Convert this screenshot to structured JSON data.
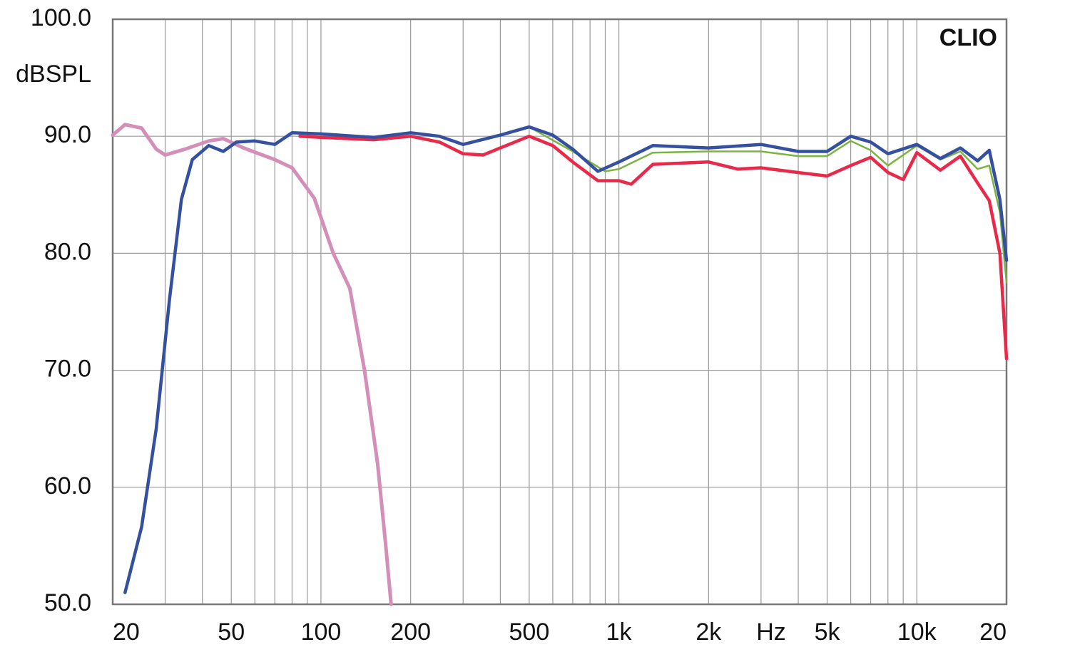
{
  "chart_data": {
    "type": "line",
    "xlog": true,
    "grid": true,
    "ylabel": "dBSPL",
    "xlabel": "Hz",
    "annotation": "CLIO",
    "xlim": [
      20,
      20000
    ],
    "ylim": [
      50,
      100
    ],
    "xticks": [
      {
        "value": 20,
        "label": "20"
      },
      50,
      100,
      200,
      500,
      {
        "value": 1000,
        "label": "1k"
      },
      {
        "value": 2000,
        "label": "2k"
      },
      {
        "value": 5000,
        "label": "5k"
      },
      {
        "value": 10000,
        "label": "10k"
      },
      {
        "value": 20000,
        "label": "20"
      }
    ],
    "xminor": [
      30,
      40,
      60,
      70,
      80,
      90,
      300,
      400,
      600,
      700,
      800,
      900,
      3000,
      4000,
      6000,
      7000,
      8000,
      9000
    ],
    "yticks": [
      {
        "value": 100,
        "label": "100.0"
      },
      {
        "value": 90,
        "label": "90.0"
      },
      {
        "value": 80,
        "label": "80.0"
      },
      {
        "value": 70,
        "label": "70.0"
      },
      {
        "value": 60,
        "label": "60.0"
      },
      {
        "value": 50,
        "label": "50.0"
      }
    ],
    "series": [
      {
        "color": "#d48fb8",
        "width": 5,
        "x": [
          20,
          22,
          25,
          28,
          30,
          35,
          42,
          47,
          55,
          70,
          80,
          95,
          110,
          125,
          140,
          155,
          165,
          172
        ],
        "values": [
          90.1,
          91,
          90.7,
          88.9,
          88.4,
          88.9,
          89.6,
          89.8,
          89,
          88,
          87.3,
          84.7,
          80,
          77,
          70,
          62,
          55,
          50
        ]
      },
      {
        "color": "#7cb342",
        "width": 2.5,
        "x": [
          500,
          700,
          900,
          1000,
          1300,
          2000,
          3000,
          4000,
          5000,
          6000,
          7000,
          8000,
          10000,
          12000,
          14000,
          16000,
          17500,
          19000,
          20000
        ],
        "values": [
          90.8,
          88.7,
          87,
          87.2,
          88.6,
          88.7,
          88.7,
          88.3,
          88.3,
          89.6,
          88.8,
          87.5,
          89.2,
          88,
          88.7,
          87.2,
          87.5,
          83.5,
          77.5
        ]
      },
      {
        "color": "#e8294a",
        "width": 4.5,
        "x": [
          85,
          100,
          150,
          200,
          250,
          300,
          350,
          400,
          500,
          600,
          700,
          850,
          1000,
          1100,
          1300,
          2000,
          2500,
          3000,
          4000,
          5000,
          6000,
          7000,
          8000,
          9000,
          10000,
          12000,
          14000,
          16000,
          17500,
          19000,
          20000
        ],
        "values": [
          90,
          89.9,
          89.7,
          90,
          89.5,
          88.5,
          88.4,
          89,
          90,
          89.2,
          87.8,
          86.2,
          86.2,
          85.9,
          87.6,
          87.8,
          87.2,
          87.3,
          86.9,
          86.6,
          87.5,
          88.2,
          86.9,
          86.3,
          88.6,
          87.1,
          88.3,
          86,
          84.5,
          80,
          71
        ]
      },
      {
        "color": "#34509e",
        "width": 4.5,
        "x": [
          22,
          25,
          28,
          31,
          34,
          37,
          42,
          47,
          52,
          60,
          70,
          80,
          100,
          150,
          200,
          250,
          300,
          400,
          500,
          600,
          700,
          850,
          1000,
          1300,
          2000,
          3000,
          4000,
          5000,
          6000,
          7000,
          8000,
          10000,
          12000,
          14000,
          16000,
          17500,
          19000,
          20000
        ],
        "values": [
          51,
          56.6,
          65,
          76,
          84.6,
          88,
          89.2,
          88.7,
          89.5,
          89.6,
          89.3,
          90.3,
          90.2,
          89.9,
          90.3,
          90,
          89.3,
          90.1,
          90.8,
          90.1,
          88.9,
          87,
          87.8,
          89.2,
          89,
          89.3,
          88.7,
          88.7,
          90,
          89.5,
          88.5,
          89.3,
          88.1,
          89,
          87.9,
          88.8,
          84.6,
          79.4
        ]
      }
    ]
  }
}
